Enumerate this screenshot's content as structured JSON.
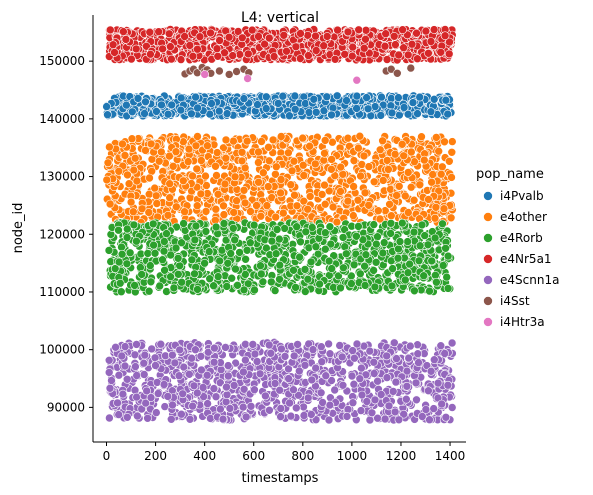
{
  "chart_data": {
    "type": "scatter",
    "title": "L4: vertical",
    "xlabel": "timestamps",
    "ylabel": "node_id",
    "xlim": [
      -55,
      1465
    ],
    "ylim": [
      84000,
      158000
    ],
    "xticks": [
      0,
      200,
      400,
      600,
      800,
      1000,
      1200,
      1400
    ],
    "xtick_labels": [
      "0",
      "200",
      "400",
      "600",
      "800",
      "1000",
      "1200",
      "1400"
    ],
    "yticks": [
      90000,
      100000,
      110000,
      120000,
      130000,
      140000,
      150000
    ],
    "ytick_labels": [
      "90000",
      "100000",
      "110000",
      "120000",
      "130000",
      "140000",
      "150000"
    ],
    "grid": false,
    "legend": {
      "title": "pop_name",
      "placement": "right-outside"
    },
    "series": [
      {
        "name": "i4Pvalb",
        "color": "#1f77b4",
        "x_range": [
          0,
          1405
        ],
        "y_range": [
          140500,
          144000
        ]
      },
      {
        "name": "e4other",
        "color": "#ff7f0e",
        "x_range": [
          0,
          1410
        ],
        "y_range": [
          122000,
          137000
        ]
      },
      {
        "name": "e4Rorb",
        "color": "#2ca02c",
        "x_range": [
          10,
          1405
        ],
        "y_range": [
          110000,
          122000
        ]
      },
      {
        "name": "e4Nr5a1",
        "color": "#d62728",
        "x_range": [
          10,
          1410
        ],
        "y_range": [
          150200,
          155500
        ]
      },
      {
        "name": "e4Scnn1a",
        "color": "#9467bd",
        "x_range": [
          10,
          1410
        ],
        "y_range": [
          87800,
          101300
        ]
      },
      {
        "name": "i4Sst",
        "color": "#8c564b",
        "points": [
          [
            320,
            147800
          ],
          [
            340,
            148300
          ],
          [
            355,
            148600
          ],
          [
            370,
            148000
          ],
          [
            390,
            148900
          ],
          [
            400,
            148200
          ],
          [
            410,
            148500
          ],
          [
            425,
            147900
          ],
          [
            460,
            148300
          ],
          [
            500,
            147700
          ],
          [
            530,
            148200
          ],
          [
            560,
            148600
          ],
          [
            580,
            148000
          ],
          [
            1140,
            148300
          ],
          [
            1160,
            148600
          ],
          [
            1185,
            147900
          ],
          [
            1240,
            148800
          ]
        ]
      },
      {
        "name": "i4Htr3a",
        "color": "#e377c2",
        "points": [
          [
            400,
            147700
          ],
          [
            575,
            147000
          ],
          [
            1020,
            146700
          ]
        ]
      }
    ]
  }
}
